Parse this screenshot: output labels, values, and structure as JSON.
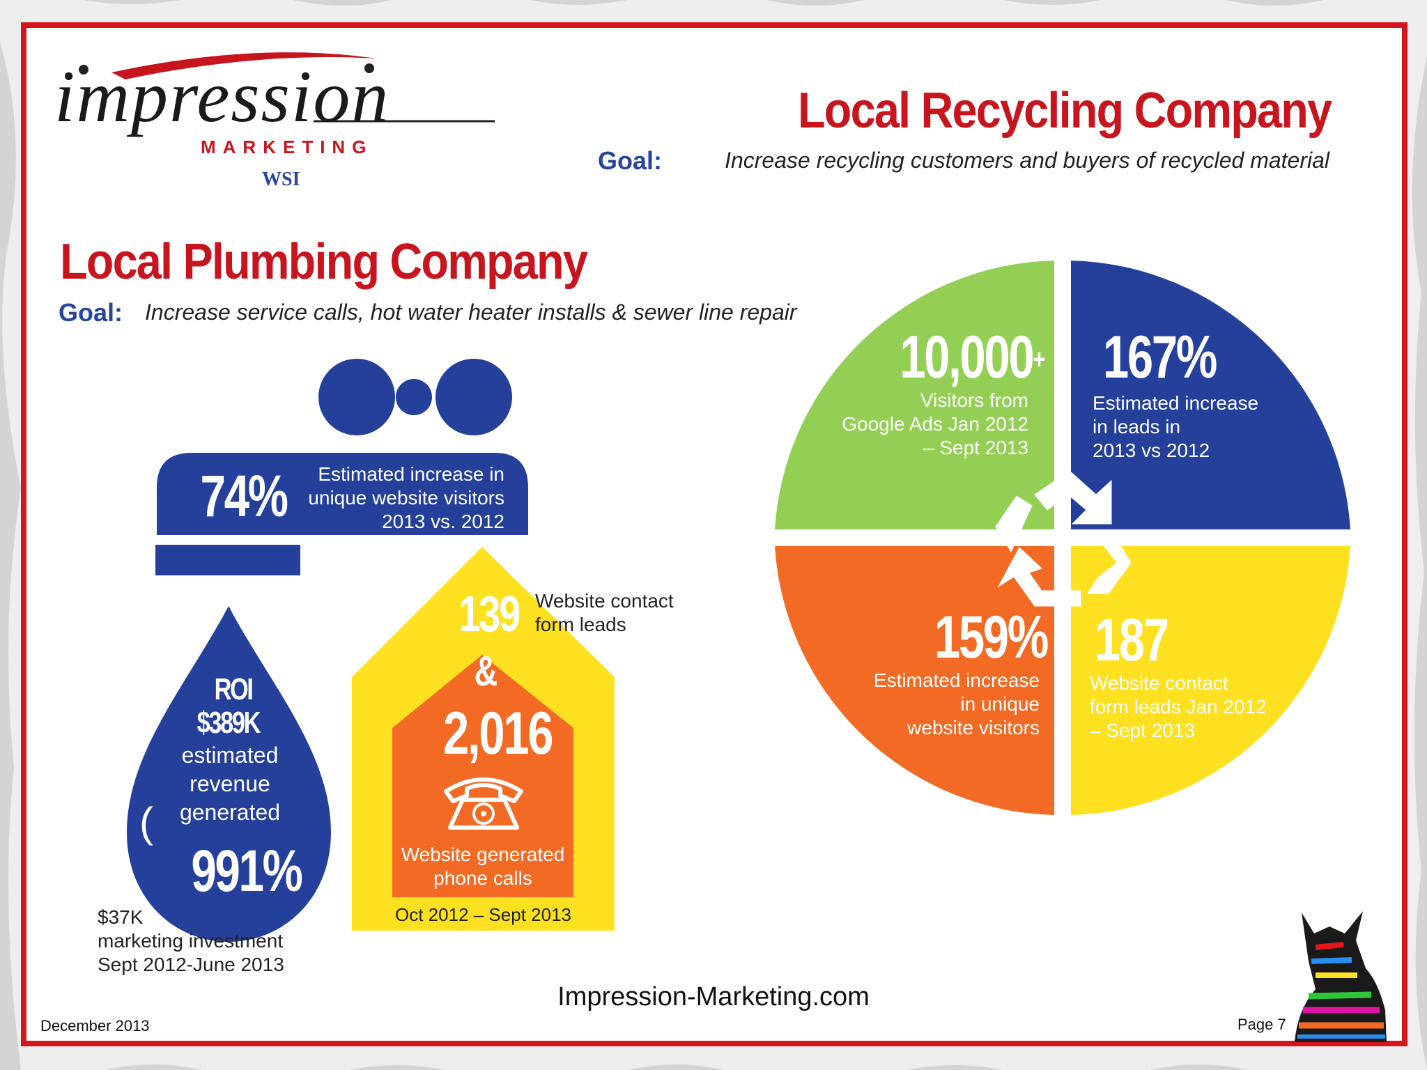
{
  "brand": {
    "logo_word": "impression",
    "logo_sub": "MARKETING",
    "logo_partner": "WSI"
  },
  "recycling": {
    "title": "Local Recycling Company",
    "goal_label": "Goal:",
    "goal_text": "Increase recycling customers and buyers of recycled material",
    "q1": {
      "value": "10,000",
      "plus": "+",
      "caption": [
        "Visitors from",
        "Google Ads Jan 2012",
        "– Sept 2013"
      ]
    },
    "q2": {
      "value": "167%",
      "caption": [
        "Estimated increase",
        "in leads in",
        "2013 vs 2012"
      ]
    },
    "q3": {
      "value": "159%",
      "caption": [
        "Estimated increase",
        "in unique",
        "website visitors"
      ]
    },
    "q4": {
      "value": "187",
      "caption": [
        "Website contact",
        "form leads Jan 2012",
        "– Sept 2013"
      ]
    }
  },
  "plumbing": {
    "title": "Local Plumbing Company",
    "goal_label": "Goal:",
    "goal_text": "Increase service calls, hot water heater installs & sewer line repair",
    "faucet": {
      "value": "74%",
      "caption": [
        "Estimated increase in",
        "unique website visitors",
        "2013 vs. 2012"
      ]
    },
    "drop": {
      "roi_label": "ROI",
      "roi_value": "$389K",
      "roi_caption": [
        "estimated",
        "revenue",
        "generated"
      ],
      "paren": "(",
      "pct": "991%"
    },
    "investment": [
      "$37K",
      "marketing investment",
      "Sept 2012-June 2013"
    ],
    "house": {
      "leads_value": "139",
      "leads_caption": [
        "Website contact",
        "form leads"
      ],
      "amp": "&",
      "calls_value": "2,016",
      "calls_caption": [
        "Website generated",
        "phone calls"
      ],
      "period": "Oct 2012 – Sept 2013"
    }
  },
  "footer": {
    "date": "December 2013",
    "website": "Impression-Marketing.com",
    "page": "Page 7"
  },
  "colors": {
    "red": "#c8141c",
    "blue": "#24409a",
    "green": "#93cf54",
    "orange": "#f26a24",
    "yellow": "#fde020"
  },
  "icons": [
    "recycle-icon",
    "telephone-icon",
    "zebra-icon"
  ]
}
